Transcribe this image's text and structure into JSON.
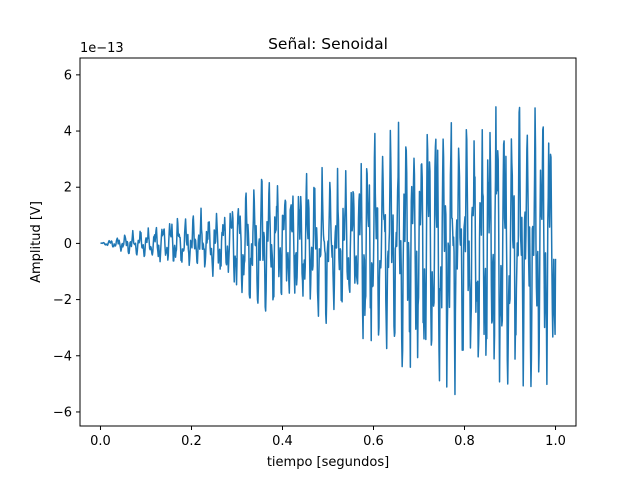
{
  "chart_data": {
    "type": "line",
    "title": "Señal: Senoidal",
    "xlabel": "tiempo [segundos]",
    "ylabel": "Amplitud [V]",
    "y_offset_text": "1e−13",
    "y_scale_exponent": -13,
    "xlim": [
      -0.045,
      1.045
    ],
    "ylim": [
      -6.5,
      6.6
    ],
    "x_ticks": [
      0.0,
      0.2,
      0.4,
      0.6,
      0.8,
      1.0
    ],
    "x_tick_labels": [
      "0.0",
      "0.2",
      "0.4",
      "0.6",
      "0.8",
      "1.0"
    ],
    "y_ticks": [
      -6,
      -4,
      -2,
      0,
      2,
      4,
      6
    ],
    "y_tick_labels": [
      "−6",
      "−4",
      "−2",
      "0",
      "2",
      "4",
      "6"
    ],
    "grid": false,
    "legend": "none",
    "series": [
      {
        "color": "#1f77b4",
        "envelope_x": [
          0.0,
          0.05,
          0.1,
          0.14,
          0.19,
          0.25,
          0.285,
          0.29,
          0.33,
          0.36,
          0.41,
          0.43,
          0.5,
          0.56,
          0.57,
          0.575,
          0.61,
          0.67,
          0.7,
          0.705,
          0.75,
          0.8,
          0.83,
          0.835,
          0.9,
          0.96,
          0.975,
          0.985,
          1.0
        ],
        "envelope_max": [
          0.0,
          0.35,
          0.6,
          0.9,
          1.1,
          1.3,
          1.4,
          2.0,
          2.2,
          2.8,
          2.4,
          2.6,
          3.0,
          3.0,
          2.8,
          4.2,
          4.3,
          4.5,
          4.4,
          5.3,
          5.3,
          4.8,
          5.2,
          5.5,
          5.4,
          4.9,
          6.0,
          5.9,
          4.1
        ],
        "envelope_min": [
          0.0,
          -0.4,
          -0.65,
          -0.9,
          -1.0,
          -1.2,
          -1.5,
          -1.9,
          -2.8,
          -2.9,
          -2.6,
          -2.9,
          -2.9,
          -2.6,
          -2.6,
          -4.1,
          -4.3,
          -4.8,
          -4.9,
          -5.6,
          -5.6,
          -5.5,
          -5.2,
          -5.9,
          -5.7,
          -5.7,
          -5.9,
          -5.6,
          -5.3
        ],
        "samples": 1000
      }
    ]
  }
}
